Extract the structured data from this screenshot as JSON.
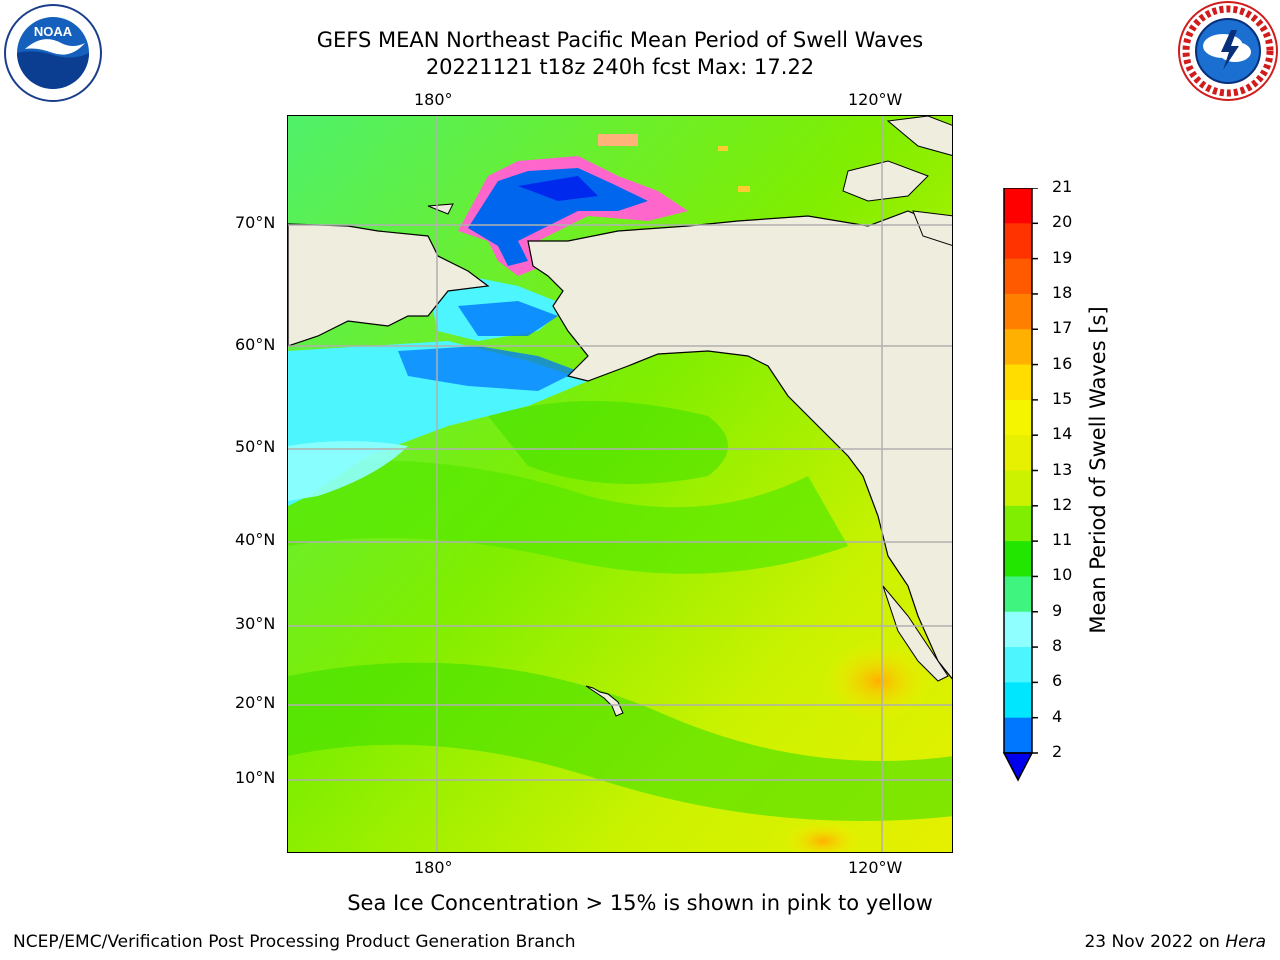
{
  "title": {
    "line1": "GEFS MEAN Northeast Pacific Mean Period of Swell Waves",
    "line2": "20221121 t18z 240h fcst   Max: 17.22"
  },
  "logos": {
    "left": "NOAA",
    "right": "NATIONAL WEATHER SERVICE"
  },
  "map": {
    "top_lon_labels": [
      "180°",
      "120°W"
    ],
    "bottom_lon_labels": [
      "180°",
      "120°W"
    ],
    "lat_labels": [
      "70°N",
      "60°N",
      "50°N",
      "40°N",
      "30°N",
      "20°N",
      "10°N"
    ],
    "colors": {
      "land": "#efedde",
      "coast": "#000000",
      "grid": "#b0b0b0"
    }
  },
  "colorbar": {
    "label": "Mean Period of Swell Waves [s]",
    "ticks": [
      "21",
      "20",
      "19",
      "18",
      "17",
      "16",
      "15",
      "14",
      "13",
      "12",
      "11",
      "10",
      "9",
      "8",
      "6",
      "4",
      "2"
    ],
    "colors_top_to_bottom": [
      "#ff0000",
      "#ff3300",
      "#ff5a00",
      "#ff8000",
      "#ffb000",
      "#ffdd00",
      "#f5f500",
      "#e6f000",
      "#ccf200",
      "#7fee00",
      "#22e600",
      "#3ff57f",
      "#8fffff",
      "#4df6ff",
      "#00e6ff",
      "#0077ff",
      "#0000ee"
    ]
  },
  "note": "Sea Ice Concentration > 15% is shown in pink to yellow",
  "footer": {
    "credit": "NCEP/EMC/Verification Post Processing Product Generation Branch",
    "date_prefix": "23 Nov 2022 on",
    "machine": "Hera"
  }
}
